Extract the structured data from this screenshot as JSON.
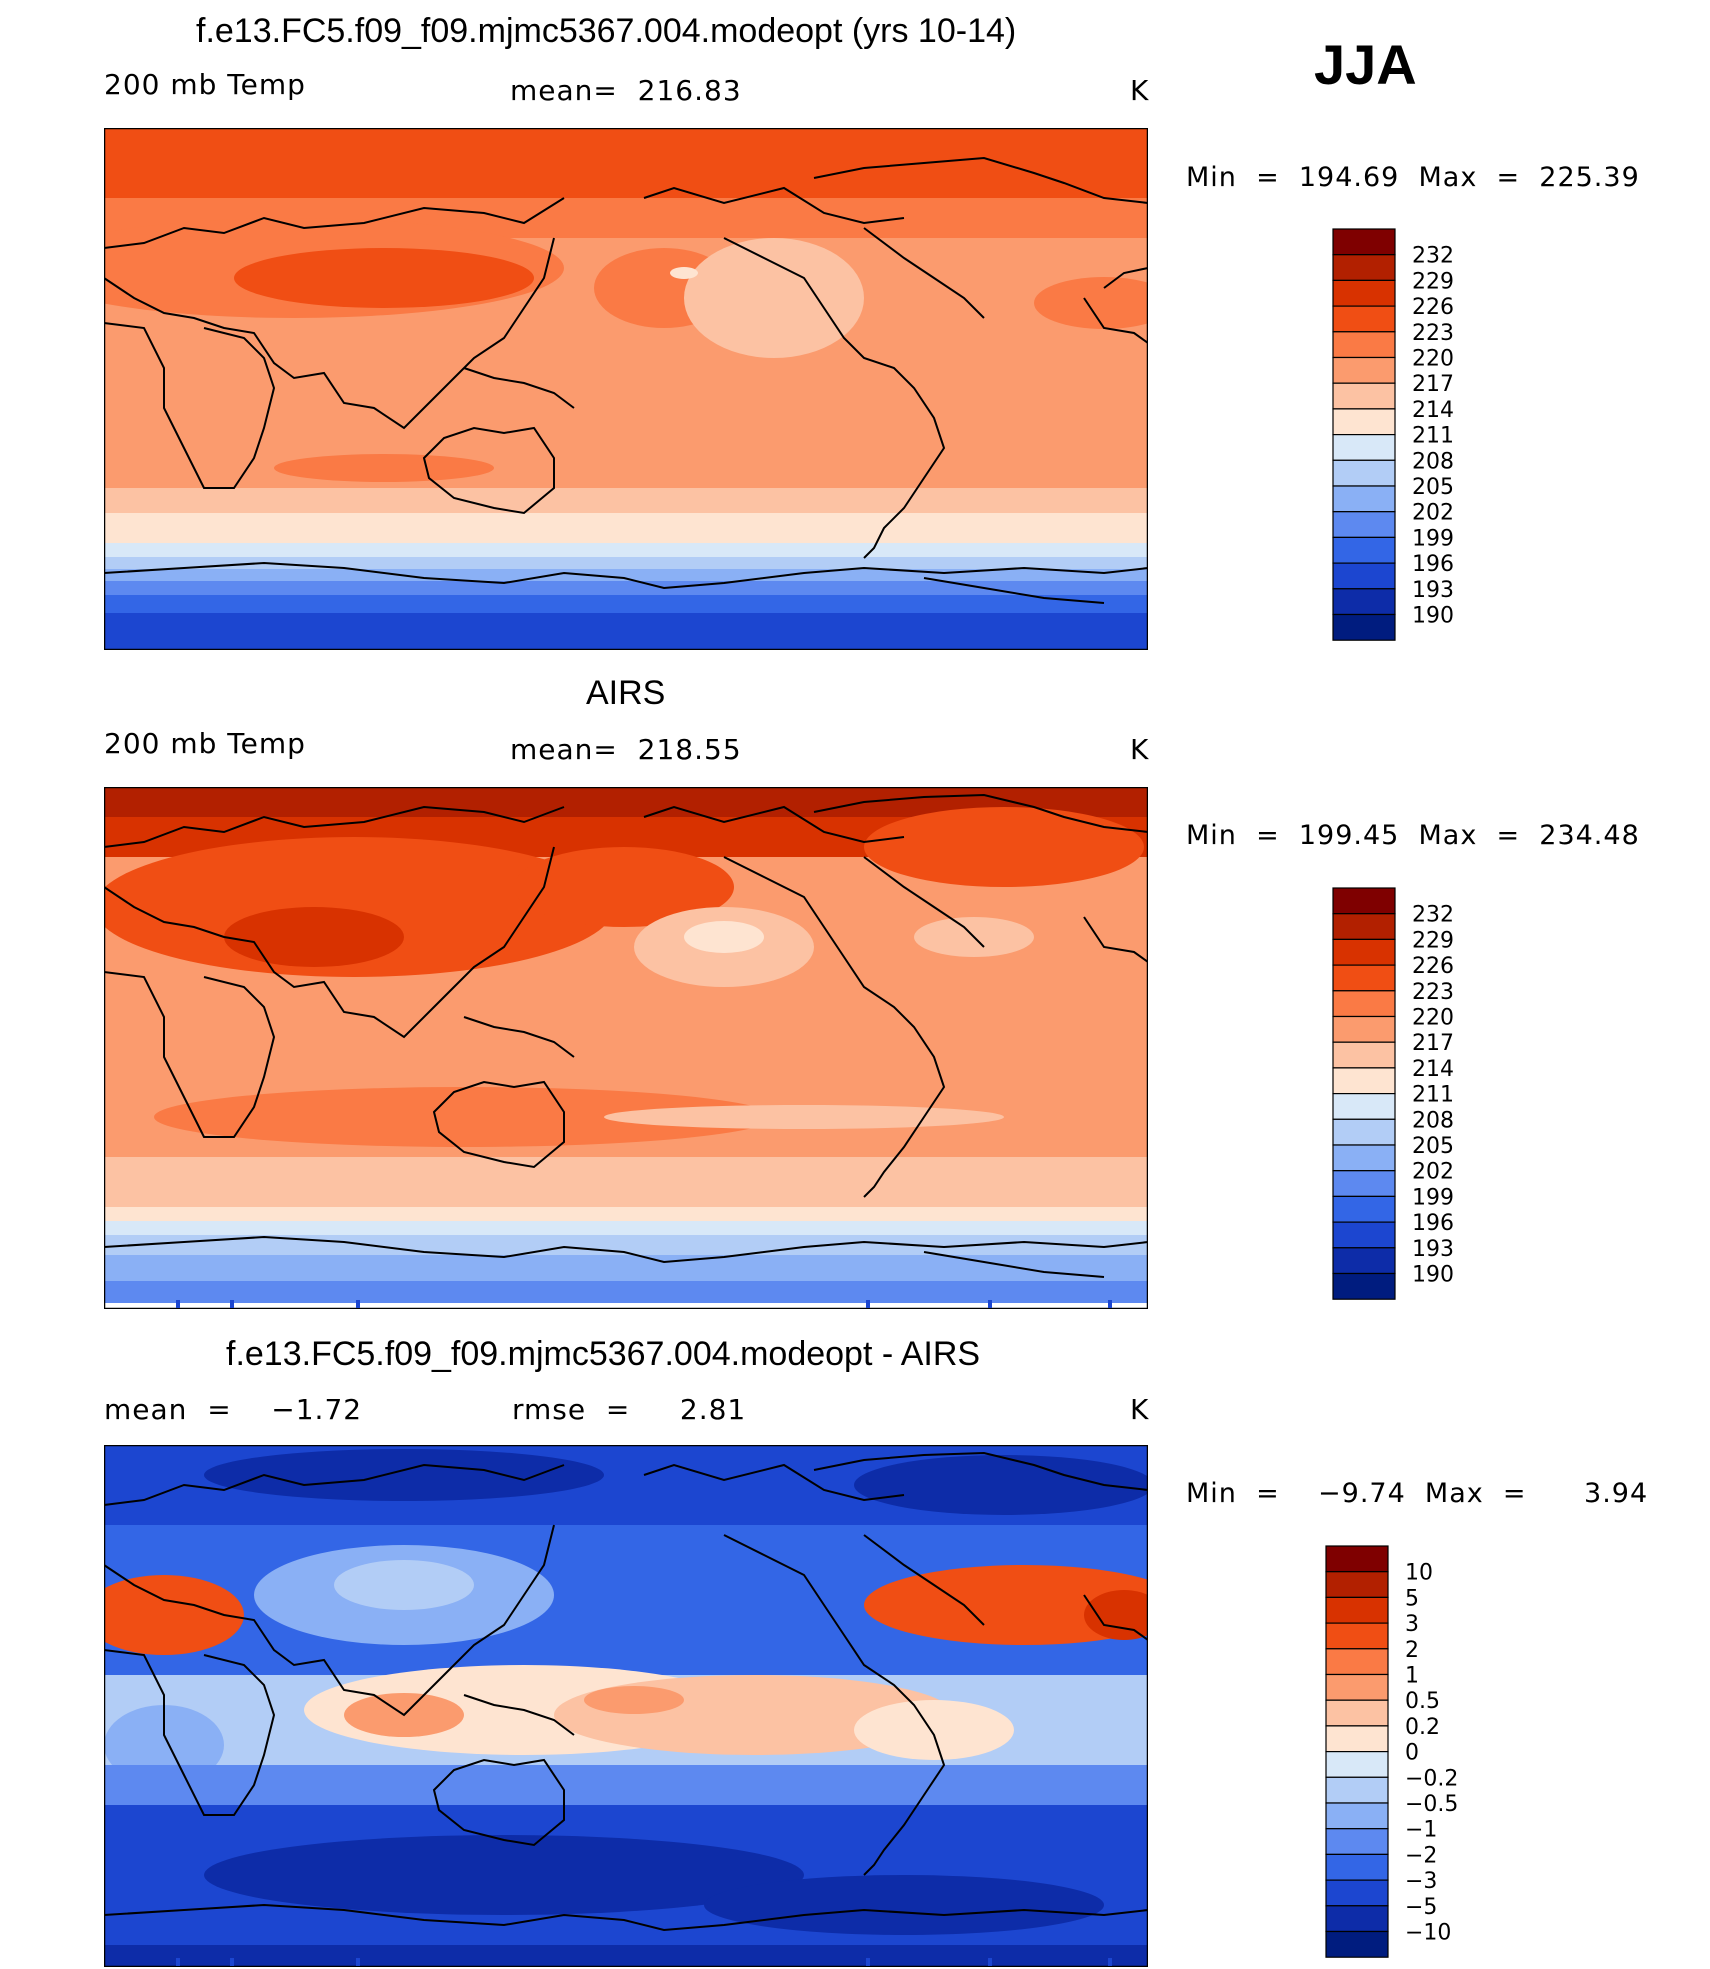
{
  "season": "JJA",
  "panels": [
    {
      "title": "f.e13.FC5.f09_f09.mjmc5367.004.modeopt (yrs 10-14)",
      "left_label": "200 mb Temp",
      "center_label": "mean=  216.83",
      "units": "K",
      "minmax": "Min  =  194.69  Max  =  225.39",
      "colorbar_labels": [
        "232",
        "229",
        "226",
        "223",
        "220",
        "217",
        "214",
        "211",
        "208",
        "205",
        "202",
        "199",
        "196",
        "193",
        "190"
      ],
      "colors": [
        "#7f0000",
        "#b22000",
        "#d83200",
        "#f04e14",
        "#fa7a45",
        "#fb9b6e",
        "#fcc2a3",
        "#fee4d1",
        "#d8e8f8",
        "#b2cdf6",
        "#8ab0f5",
        "#5d89f0",
        "#3366e6",
        "#1c46d0",
        "#0d2ca8",
        "#001c7f"
      ]
    },
    {
      "title": "AIRS",
      "left_label": "200 mb Temp",
      "center_label": "mean=  218.55",
      "units": "K",
      "minmax": "Min  =  199.45  Max  =  234.48",
      "colorbar_labels": [
        "232",
        "229",
        "226",
        "223",
        "220",
        "217",
        "214",
        "211",
        "208",
        "205",
        "202",
        "199",
        "196",
        "193",
        "190"
      ],
      "colors": [
        "#7f0000",
        "#b22000",
        "#d83200",
        "#f04e14",
        "#fa7a45",
        "#fb9b6e",
        "#fcc2a3",
        "#fee4d1",
        "#d8e8f8",
        "#b2cdf6",
        "#8ab0f5",
        "#5d89f0",
        "#3366e6",
        "#1c46d0",
        "#0d2ca8",
        "#001c7f"
      ]
    },
    {
      "title": "f.e13.FC5.f09_f09.mjmc5367.004.modeopt - AIRS",
      "left_label": "mean  =    −1.72",
      "center_label": "rmse  =     2.81",
      "units": "K",
      "minmax": "Min  =    −9.74  Max  =      3.94",
      "colorbar_labels": [
        "10",
        "5",
        "3",
        "2",
        "1",
        "0.5",
        "0.2",
        "0",
        "−0.2",
        "−0.5",
        "−1",
        "−2",
        "−3",
        "−5",
        "−10"
      ],
      "colors": [
        "#7f0000",
        "#b22000",
        "#d83200",
        "#f04e14",
        "#fa7a45",
        "#fb9b6e",
        "#fcc2a3",
        "#fee4d1",
        "#d8e8f8",
        "#b2cdf6",
        "#8ab0f5",
        "#5d89f0",
        "#3366e6",
        "#1c46d0",
        "#0d2ca8",
        "#001c7f"
      ]
    }
  ]
}
